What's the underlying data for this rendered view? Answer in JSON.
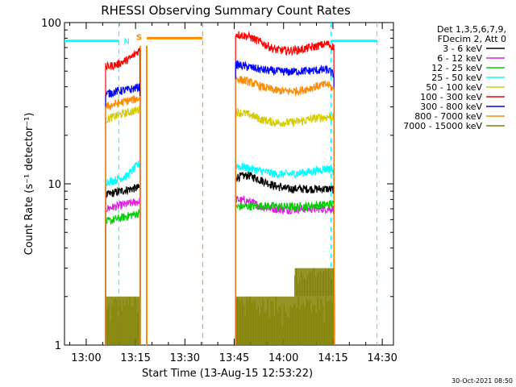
{
  "chart_data": {
    "type": "line",
    "title": "RHESSI Observing Summary Count Rates",
    "xlabel": "Start Time (13-Aug-15 12:53:22)",
    "ylabel": "Count Rate (s⁻¹ detector⁻¹)",
    "yscale": "log",
    "ylim": [
      1,
      100
    ],
    "xlim_minutes": [
      0,
      100
    ],
    "x_ticks": [
      {
        "label": "13:00",
        "min": 6.6
      },
      {
        "label": "13:15",
        "min": 21.6
      },
      {
        "label": "13:30",
        "min": 36.6
      },
      {
        "label": "13:45",
        "min": 51.6
      },
      {
        "label": "14:00",
        "min": 66.6
      },
      {
        "label": "14:15",
        "min": 81.6
      },
      {
        "label": "14:30",
        "min": 96.6
      }
    ],
    "y_ticks": [
      {
        "label": "1",
        "value": 1
      },
      {
        "label": "10",
        "value": 10
      },
      {
        "label": "100",
        "value": 100
      }
    ],
    "legend": {
      "position": "top-right",
      "header": [
        "Det 1,3,5,6,7,9,",
        "FDecim 2, Att 0"
      ]
    },
    "series": [
      {
        "name": "3 - 6 keV",
        "color": "#000000",
        "segments": [
          [
            [
              12.5,
              8.5
            ],
            [
              15,
              8.8
            ],
            [
              19,
              9.2
            ],
            [
              23,
              9.5
            ]
          ],
          [
            [
              52,
              11
            ],
            [
              56,
              11.3
            ],
            [
              60,
              10.5
            ],
            [
              64,
              9.7
            ],
            [
              68,
              9.3
            ],
            [
              72,
              9.3
            ],
            [
              76,
              9.3
            ],
            [
              80,
              9.3
            ],
            [
              82,
              9.2
            ]
          ]
        ]
      },
      {
        "name": "6 - 12 keV",
        "color": "#e020e0",
        "segments": [
          [
            [
              12.5,
              7
            ],
            [
              23,
              7.8
            ]
          ],
          [
            [
              52,
              8
            ],
            [
              56,
              7.8
            ],
            [
              60,
              7.2
            ],
            [
              64,
              7
            ],
            [
              68,
              6.9
            ],
            [
              72,
              7
            ],
            [
              76,
              7
            ],
            [
              80,
              7
            ],
            [
              82,
              7
            ]
          ]
        ]
      },
      {
        "name": "12 - 25 keV",
        "color": "#00d000",
        "segments": [
          [
            [
              12.5,
              5.8
            ],
            [
              23,
              6.6
            ]
          ],
          [
            [
              52,
              7.2
            ],
            [
              60,
              7.3
            ],
            [
              70,
              7.2
            ],
            [
              82,
              7.5
            ]
          ]
        ]
      },
      {
        "name": "25 - 50 keV",
        "color": "#00ffff",
        "segments": [
          [
            [
              12.5,
              10.3
            ],
            [
              15,
              10.5
            ],
            [
              19,
              11.2
            ],
            [
              23,
              13.5
            ]
          ],
          [
            [
              52,
              13
            ],
            [
              56,
              12.5
            ],
            [
              60,
              12
            ],
            [
              64,
              11.5
            ],
            [
              68,
              11.5
            ],
            [
              72,
              11.7
            ],
            [
              76,
              12
            ],
            [
              80,
              12.5
            ],
            [
              82,
              12
            ]
          ]
        ]
      },
      {
        "name": "50 - 100 keV",
        "color": "#d4cc00",
        "segments": [
          [
            [
              12.5,
              25
            ],
            [
              16,
              26.5
            ],
            [
              20,
              28
            ],
            [
              23,
              29
            ]
          ],
          [
            [
              52,
              28
            ],
            [
              56,
              27
            ],
            [
              60,
              25
            ],
            [
              64,
              24
            ],
            [
              68,
              24
            ],
            [
              72,
              24.5
            ],
            [
              76,
              25.5
            ],
            [
              80,
              26
            ],
            [
              82,
              26
            ]
          ]
        ]
      },
      {
        "name": "100 - 300 keV",
        "color": "#ff0000",
        "segments": [
          [
            [
              12.5,
              53
            ],
            [
              16,
              55
            ],
            [
              20,
              60
            ],
            [
              23,
              68
            ]
          ],
          [
            [
              52,
              85
            ],
            [
              56,
              82
            ],
            [
              60,
              75
            ],
            [
              64,
              68
            ],
            [
              68,
              67
            ],
            [
              72,
              68
            ],
            [
              76,
              71
            ],
            [
              80,
              74
            ],
            [
              82,
              70
            ]
          ]
        ]
      },
      {
        "name": "300 - 800 keV",
        "color": "#0000ff",
        "segments": [
          [
            [
              12.5,
              36
            ],
            [
              16,
              37.5
            ],
            [
              20,
              38.5
            ],
            [
              23,
              40
            ]
          ],
          [
            [
              52,
              55
            ],
            [
              56,
              53
            ],
            [
              60,
              51
            ],
            [
              64,
              50
            ],
            [
              68,
              49.5
            ],
            [
              72,
              50
            ],
            [
              76,
              50.5
            ],
            [
              80,
              51
            ],
            [
              82,
              47
            ]
          ]
        ]
      },
      {
        "name": "800 - 7000 keV",
        "color": "#ff8c00",
        "segments": [
          [
            [
              12.5,
              30
            ],
            [
              16,
              31.5
            ],
            [
              20,
              33
            ],
            [
              23,
              34
            ]
          ],
          [
            [
              52,
              45
            ],
            [
              56,
              43
            ],
            [
              60,
              40
            ],
            [
              64,
              38
            ],
            [
              68,
              37.5
            ],
            [
              72,
              38
            ],
            [
              76,
              40
            ],
            [
              80,
              41.5
            ],
            [
              82,
              38
            ]
          ]
        ]
      },
      {
        "name": "7000 - 15000 keV",
        "color": "#808000",
        "segments": []
      }
    ],
    "annotations": {
      "rate_band_7000_15000": [
        {
          "x_start": 12.5,
          "x_end": 23,
          "y_low": 1,
          "y_high": 2
        },
        {
          "x_start": 52,
          "x_end": 82,
          "y_low": 1,
          "y_high": 2
        },
        {
          "x_start": 70,
          "x_end": 82,
          "y_low": 2,
          "y_high": 3
        }
      ],
      "saa_flag": {
        "label": "S",
        "color": "#ff8c00",
        "value": 77,
        "ranges": [
          [
            23,
            25
          ],
          [
            25,
            42
          ]
        ]
      },
      "night_flag": {
        "label": "N",
        "color": "#00ffff",
        "value": 77,
        "ranges": [
          [
            0,
            16.5
          ],
          [
            81,
            95
          ]
        ]
      },
      "night_vlines": {
        "color": "#00ffff",
        "minutes": [
          16.5,
          81,
          95
        ]
      },
      "saa_vlines": {
        "color": "#ff8c00",
        "minutes": [
          42
        ]
      },
      "data_edges": {
        "color": "#00ffff",
        "minutes": [
          23,
          52,
          82
        ]
      }
    },
    "footer": "30-Oct-2021 08:50"
  }
}
